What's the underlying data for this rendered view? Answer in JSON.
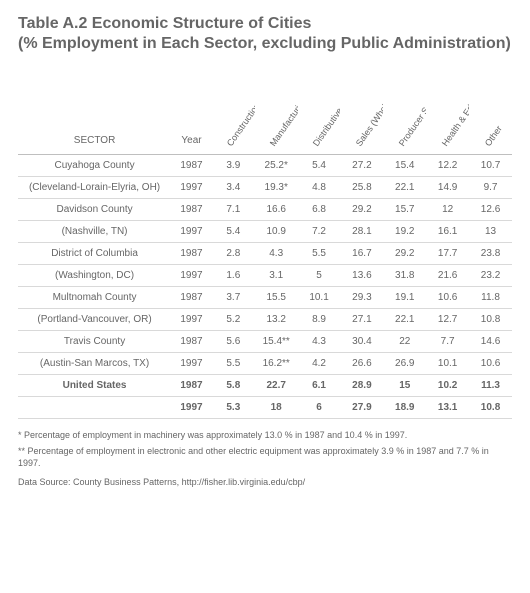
{
  "title_line1": "Table A.2   Economic Structure of Cities",
  "title_line2": "(% Employment in Each Sector, excluding Public Administration)",
  "table": {
    "sector_header": "SECTOR",
    "year_header": "Year",
    "columns": [
      "Construction",
      "Manufacturing",
      "Distributive Services",
      "Sales (Wholesale & retail)",
      "Producer Services",
      "Health & Education",
      "Other"
    ],
    "rows": [
      {
        "label": "Cuyahoga County",
        "year": "1987",
        "v": [
          "3.9",
          "25.2*",
          "5.4",
          "27.2",
          "15.4",
          "12.2",
          "10.7"
        ],
        "bold": false
      },
      {
        "label": "(Cleveland-Lorain-Elyria, OH)",
        "year": "1997",
        "v": [
          "3.4",
          "19.3*",
          "4.8",
          "25.8",
          "22.1",
          "14.9",
          "9.7"
        ],
        "bold": false
      },
      {
        "label": "Davidson County",
        "year": "1987",
        "v": [
          "7.1",
          "16.6",
          "6.8",
          "29.2",
          "15.7",
          "12",
          "12.6"
        ],
        "bold": false
      },
      {
        "label": "(Nashville, TN)",
        "year": "1997",
        "v": [
          "5.4",
          "10.9",
          "7.2",
          "28.1",
          "19.2",
          "16.1",
          "13"
        ],
        "bold": false
      },
      {
        "label": "District of Columbia",
        "year": "1987",
        "v": [
          "2.8",
          "4.3",
          "5.5",
          "16.7",
          "29.2",
          "17.7",
          "23.8"
        ],
        "bold": false
      },
      {
        "label": "(Washington, DC)",
        "year": "1997",
        "v": [
          "1.6",
          "3.1",
          "5",
          "13.6",
          "31.8",
          "21.6",
          "23.2"
        ],
        "bold": false
      },
      {
        "label": "Multnomah County",
        "year": "1987",
        "v": [
          "3.7",
          "15.5",
          "10.1",
          "29.3",
          "19.1",
          "10.6",
          "11.8"
        ],
        "bold": false
      },
      {
        "label": "(Portland-Vancouver, OR)",
        "year": "1997",
        "v": [
          "5.2",
          "13.2",
          "8.9",
          "27.1",
          "22.1",
          "12.7",
          "10.8"
        ],
        "bold": false
      },
      {
        "label": "Travis County",
        "year": "1987",
        "v": [
          "5.6",
          "15.4**",
          "4.3",
          "30.4",
          "22",
          "7.7",
          "14.6"
        ],
        "bold": false
      },
      {
        "label": "(Austin-San Marcos, TX)",
        "year": "1997",
        "v": [
          "5.5",
          "16.2**",
          "4.2",
          "26.6",
          "26.9",
          "10.1",
          "10.6"
        ],
        "bold": false
      },
      {
        "label": "United States",
        "year": "1987",
        "v": [
          "5.8",
          "22.7",
          "6.1",
          "28.9",
          "15",
          "10.2",
          "11.3"
        ],
        "bold": true
      },
      {
        "label": "",
        "year": "1997",
        "v": [
          "5.3",
          "18",
          "6",
          "27.9",
          "18.9",
          "13.1",
          "10.8"
        ],
        "bold": true
      }
    ]
  },
  "footnote1": "* Percentage of employment in machinery was approximately 13.0 % in 1987 and 10.4 % in 1997.",
  "footnote2": "** Percentage of employment in electronic and other electric equipment was approximately 3.9 % in 1987 and 7.7 % in 1997.",
  "source": "Data Source: County Business Patterns, http://fisher.lib.virginia.edu/cbp/"
}
